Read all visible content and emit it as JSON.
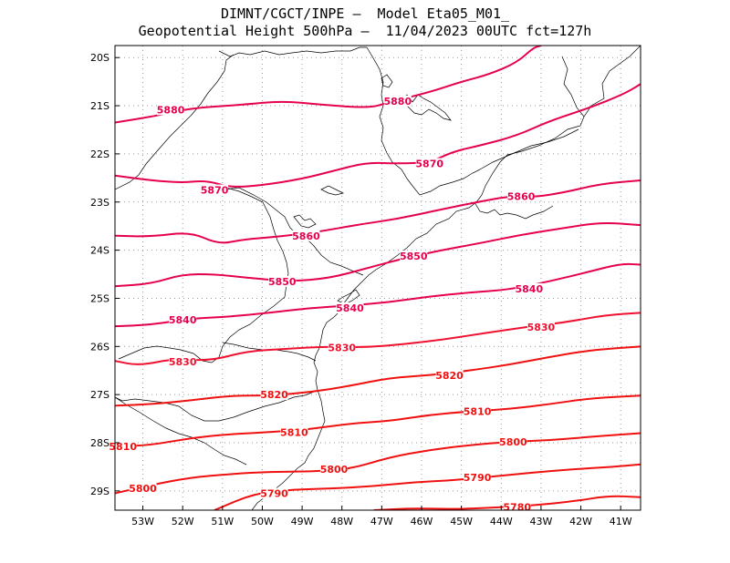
{
  "title": {
    "line1": "DIMNT/CGCT/INPE –  Model Eta05_M01_",
    "line2": "Geopotential Height 500hPa –  11/04/2023 00UTC fct=127h"
  },
  "map": {
    "lon_labels": [
      "53W",
      "52W",
      "51W",
      "50W",
      "49W",
      "48W",
      "47W",
      "46W",
      "45W",
      "44W",
      "43W",
      "42W",
      "41W"
    ],
    "lat_labels": [
      "20S",
      "21S",
      "22S",
      "23S",
      "24S",
      "25S",
      "26S",
      "27S",
      "28S",
      "29S"
    ],
    "lon_range": [
      -53.7,
      -40.5
    ],
    "lat_range": [
      -19.75,
      -29.4
    ],
    "grid": "dotted",
    "colors": {
      "contour_high": "#e6004c",
      "contour_low": "#f01010",
      "coast": "#000000"
    }
  },
  "chart_data": {
    "type": "contour",
    "variable": "Geopotential Height 500hPa",
    "levels": [
      {
        "label": "5880",
        "color": "#e6004c",
        "points": [
          [
            -53.7,
            -21.35
          ],
          [
            -52.6,
            -21.2
          ],
          [
            -51.8,
            -21.05
          ],
          [
            -50.5,
            -20.98
          ],
          [
            -49.5,
            -20.9
          ],
          [
            -48.5,
            -20.98
          ],
          [
            -47.3,
            -21.05
          ],
          [
            -46.8,
            -20.92
          ],
          [
            -45.8,
            -20.72
          ],
          [
            -45.0,
            -20.5
          ],
          [
            -44.3,
            -20.35
          ],
          [
            -43.6,
            -20.1
          ],
          [
            -43.2,
            -19.8
          ],
          [
            -43.0,
            -19.75
          ]
        ],
        "label_at": [
          [
            -52.3,
            -21.08
          ],
          [
            -46.6,
            -20.9
          ]
        ]
      },
      {
        "label": "5870",
        "color": "#e6004c",
        "points": [
          [
            -53.7,
            -22.45
          ],
          [
            -52.8,
            -22.55
          ],
          [
            -52.0,
            -22.6
          ],
          [
            -51.4,
            -22.55
          ],
          [
            -50.8,
            -22.7
          ],
          [
            -50.0,
            -22.65
          ],
          [
            -49.0,
            -22.52
          ],
          [
            -48.2,
            -22.35
          ],
          [
            -47.4,
            -22.18
          ],
          [
            -46.6,
            -22.2
          ],
          [
            -45.8,
            -22.18
          ],
          [
            -45.2,
            -21.95
          ],
          [
            -44.5,
            -21.82
          ],
          [
            -43.6,
            -21.62
          ],
          [
            -42.8,
            -21.32
          ],
          [
            -41.8,
            -21.05
          ],
          [
            -40.9,
            -20.75
          ],
          [
            -40.5,
            -20.55
          ]
        ],
        "label_at": [
          [
            -51.2,
            -22.75
          ],
          [
            -45.8,
            -22.2
          ]
        ]
      },
      {
        "label": "5860",
        "color": "#e6004c",
        "points": [
          [
            -53.7,
            -23.7
          ],
          [
            -52.8,
            -23.72
          ],
          [
            -51.8,
            -23.62
          ],
          [
            -51.1,
            -23.88
          ],
          [
            -50.5,
            -23.78
          ],
          [
            -49.6,
            -23.72
          ],
          [
            -48.6,
            -23.62
          ],
          [
            -47.6,
            -23.47
          ],
          [
            -46.6,
            -23.35
          ],
          [
            -45.6,
            -23.17
          ],
          [
            -44.6,
            -23.0
          ],
          [
            -43.8,
            -22.88
          ],
          [
            -43.2,
            -22.9
          ],
          [
            -42.4,
            -22.8
          ],
          [
            -41.5,
            -22.62
          ],
          [
            -40.5,
            -22.55
          ]
        ],
        "label_at": [
          [
            -48.9,
            -23.7
          ],
          [
            -43.5,
            -22.88
          ]
        ]
      },
      {
        "label": "5850",
        "color": "#e6004c",
        "points": [
          [
            -53.7,
            -24.75
          ],
          [
            -52.8,
            -24.7
          ],
          [
            -52.0,
            -24.5
          ],
          [
            -51.2,
            -24.5
          ],
          [
            -50.3,
            -24.58
          ],
          [
            -49.3,
            -24.65
          ],
          [
            -48.3,
            -24.58
          ],
          [
            -47.4,
            -24.38
          ],
          [
            -46.5,
            -24.18
          ],
          [
            -45.5,
            -24.0
          ],
          [
            -44.5,
            -23.85
          ],
          [
            -43.5,
            -23.68
          ],
          [
            -42.5,
            -23.55
          ],
          [
            -41.5,
            -23.42
          ],
          [
            -40.5,
            -23.48
          ]
        ],
        "label_at": [
          [
            -49.5,
            -24.65
          ],
          [
            -46.2,
            -24.12
          ]
        ]
      },
      {
        "label": "5840",
        "color": "#e6004c",
        "points": [
          [
            -53.7,
            -25.58
          ],
          [
            -52.8,
            -25.55
          ],
          [
            -51.8,
            -25.42
          ],
          [
            -50.8,
            -25.38
          ],
          [
            -49.8,
            -25.3
          ],
          [
            -48.8,
            -25.2
          ],
          [
            -47.8,
            -25.15
          ],
          [
            -46.8,
            -25.08
          ],
          [
            -45.8,
            -24.96
          ],
          [
            -44.8,
            -24.88
          ],
          [
            -43.8,
            -24.82
          ],
          [
            -42.8,
            -24.65
          ],
          [
            -41.8,
            -24.45
          ],
          [
            -41.0,
            -24.28
          ],
          [
            -40.5,
            -24.3
          ]
        ],
        "label_at": [
          [
            -52.0,
            -25.45
          ],
          [
            -47.8,
            -25.2
          ],
          [
            -43.3,
            -24.8
          ]
        ]
      },
      {
        "label": "5830",
        "color": "#f01030",
        "points": [
          [
            -53.7,
            -26.3
          ],
          [
            -53.1,
            -26.4
          ],
          [
            -52.2,
            -26.25
          ],
          [
            -51.3,
            -26.3
          ],
          [
            -50.4,
            -26.1
          ],
          [
            -49.4,
            -26.05
          ],
          [
            -48.4,
            -26.0
          ],
          [
            -47.4,
            -26.02
          ],
          [
            -46.4,
            -25.95
          ],
          [
            -45.4,
            -25.85
          ],
          [
            -44.4,
            -25.72
          ],
          [
            -43.4,
            -25.6
          ],
          [
            -42.4,
            -25.5
          ],
          [
            -41.4,
            -25.35
          ],
          [
            -40.5,
            -25.3
          ]
        ],
        "label_at": [
          [
            -52.0,
            -26.32
          ],
          [
            -48.0,
            -26.02
          ],
          [
            -43.0,
            -25.6
          ]
        ]
      },
      {
        "label": "5820",
        "color": "#f01010",
        "points": [
          [
            -53.7,
            -27.23
          ],
          [
            -52.8,
            -27.2
          ],
          [
            -51.8,
            -27.12
          ],
          [
            -50.8,
            -27.02
          ],
          [
            -49.8,
            -27.02
          ],
          [
            -48.8,
            -26.95
          ],
          [
            -47.8,
            -26.82
          ],
          [
            -46.8,
            -26.65
          ],
          [
            -45.8,
            -26.6
          ],
          [
            -44.8,
            -26.5
          ],
          [
            -43.8,
            -26.38
          ],
          [
            -42.8,
            -26.22
          ],
          [
            -41.8,
            -26.08
          ],
          [
            -40.5,
            -26.0
          ]
        ],
        "label_at": [
          [
            -49.7,
            -27.0
          ],
          [
            -45.3,
            -26.6
          ]
        ]
      },
      {
        "label": "5810",
        "color": "#f01010",
        "points": [
          [
            -53.7,
            -28.08
          ],
          [
            -52.8,
            -28.05
          ],
          [
            -51.8,
            -27.9
          ],
          [
            -50.8,
            -27.82
          ],
          [
            -49.8,
            -27.78
          ],
          [
            -48.8,
            -27.72
          ],
          [
            -47.8,
            -27.6
          ],
          [
            -46.8,
            -27.55
          ],
          [
            -45.8,
            -27.42
          ],
          [
            -44.8,
            -27.35
          ],
          [
            -43.8,
            -27.3
          ],
          [
            -42.8,
            -27.2
          ],
          [
            -41.8,
            -27.08
          ],
          [
            -40.5,
            -27.02
          ]
        ],
        "label_at": [
          [
            -53.5,
            -28.08
          ],
          [
            -49.2,
            -27.78
          ],
          [
            -44.6,
            -27.35
          ]
        ]
      },
      {
        "label": "5800",
        "color": "#f01010",
        "points": [
          [
            -53.7,
            -29.05
          ],
          [
            -52.8,
            -28.88
          ],
          [
            -51.8,
            -28.72
          ],
          [
            -50.8,
            -28.65
          ],
          [
            -49.8,
            -28.6
          ],
          [
            -48.8,
            -28.6
          ],
          [
            -47.8,
            -28.55
          ],
          [
            -46.8,
            -28.3
          ],
          [
            -45.8,
            -28.15
          ],
          [
            -44.8,
            -28.05
          ],
          [
            -43.8,
            -27.98
          ],
          [
            -42.8,
            -27.95
          ],
          [
            -41.8,
            -27.88
          ],
          [
            -40.5,
            -27.8
          ]
        ],
        "label_at": [
          [
            -53.0,
            -28.95
          ],
          [
            -48.2,
            -28.55
          ],
          [
            -43.7,
            -27.98
          ]
        ]
      },
      {
        "label": "5790",
        "color": "#f01010",
        "points": [
          [
            -51.2,
            -29.4
          ],
          [
            -50.2,
            -29.05
          ],
          [
            -49.2,
            -28.97
          ],
          [
            -48.2,
            -28.95
          ],
          [
            -47.2,
            -28.9
          ],
          [
            -46.2,
            -28.82
          ],
          [
            -45.2,
            -28.78
          ],
          [
            -44.2,
            -28.7
          ],
          [
            -43.2,
            -28.62
          ],
          [
            -42.2,
            -28.55
          ],
          [
            -41.2,
            -28.5
          ],
          [
            -40.5,
            -28.45
          ]
        ],
        "label_at": [
          [
            -49.7,
            -29.05
          ],
          [
            -44.6,
            -28.72
          ]
        ]
      },
      {
        "label": "5780",
        "color": "#f01010",
        "points": [
          [
            -47.2,
            -29.4
          ],
          [
            -46.2,
            -29.36
          ],
          [
            -45.2,
            -29.38
          ],
          [
            -44.2,
            -29.35
          ],
          [
            -43.2,
            -29.3
          ],
          [
            -42.2,
            -29.22
          ],
          [
            -41.3,
            -29.1
          ],
          [
            -40.5,
            -29.13
          ]
        ],
        "label_at": [
          [
            -43.6,
            -29.33
          ]
        ]
      }
    ]
  }
}
